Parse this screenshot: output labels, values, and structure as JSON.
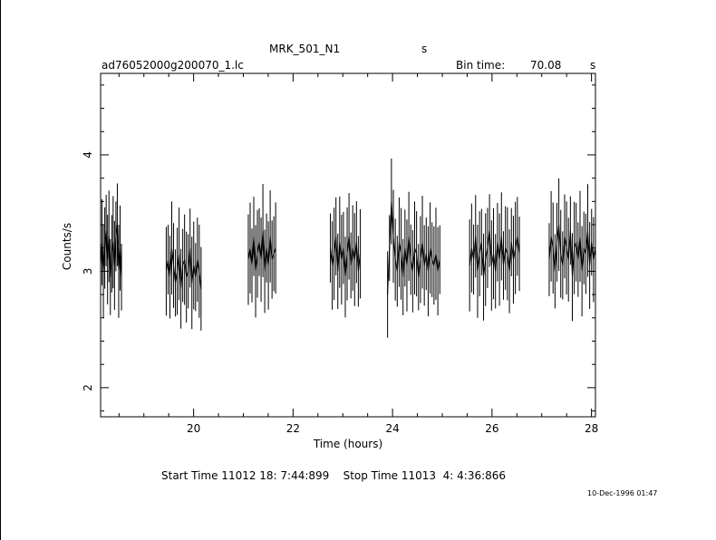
{
  "header": {
    "object": "MRK_501_N1",
    "object_unit": "s",
    "filename": "ad76052000g200070_1.lc",
    "bin_time_label": "Bin time:",
    "bin_time_value": "70.08",
    "bin_time_unit": "s"
  },
  "footer": {
    "start_stop": "Start Time 11012 18: 7:44:899    Stop Time 11013  4: 4:36:866",
    "date_stamp": "10-Dec-1996 01:47"
  },
  "chart_data": {
    "type": "line",
    "style": "error-bar light curve",
    "xlabel": "Time (hours)",
    "ylabel": "Counts/s",
    "xlim": [
      18.13,
      28.08
    ],
    "ylim": [
      1.75,
      4.7
    ],
    "xticks": [
      20,
      22,
      24,
      26,
      28
    ],
    "yticks": [
      2,
      3,
      4
    ],
    "segments": [
      {
        "t_start": 18.13,
        "t_end": 18.55,
        "values": [
          3.05,
          3.25,
          3.0,
          3.2,
          3.35,
          3.1,
          3.3,
          2.95,
          3.15,
          3.25,
          3.05,
          3.3,
          3.4,
          3.0,
          3.2,
          2.95
        ]
      },
      {
        "t_start": 19.45,
        "t_end": 20.15,
        "values": [
          3.0,
          3.1,
          2.95,
          3.2,
          3.05,
          2.9,
          3.0,
          3.15,
          2.85,
          3.05,
          3.1,
          2.95,
          3.0,
          3.2,
          2.9,
          3.05,
          2.95,
          3.1,
          3.0,
          2.85
        ]
      },
      {
        "t_start": 21.1,
        "t_end": 21.65,
        "values": [
          3.1,
          3.2,
          3.05,
          3.3,
          3.0,
          3.15,
          3.25,
          3.1,
          3.35,
          3.0,
          3.2,
          3.05,
          3.3,
          3.1,
          3.15,
          3.2
        ]
      },
      {
        "t_start": 22.75,
        "t_end": 23.35,
        "values": [
          3.2,
          3.05,
          3.15,
          3.3,
          3.0,
          3.25,
          3.1,
          3.2,
          2.95,
          3.15,
          3.3,
          3.05,
          3.2,
          3.1,
          3.25,
          3.0,
          3.15
        ]
      },
      {
        "t_start": 23.9,
        "t_end": 24.95,
        "values": [
          2.8,
          3.2,
          3.6,
          3.3,
          3.1,
          3.0,
          3.25,
          3.15,
          2.95,
          3.2,
          3.05,
          3.3,
          3.1,
          3.0,
          3.2,
          3.15,
          2.95,
          3.1,
          3.25,
          3.05,
          3.15,
          3.0,
          3.2,
          3.1,
          3.05,
          3.15,
          3.0,
          3.1
        ]
      },
      {
        "t_start": 25.55,
        "t_end": 26.55,
        "values": [
          3.05,
          3.2,
          3.1,
          3.3,
          3.0,
          3.15,
          3.25,
          2.95,
          3.1,
          3.2,
          3.35,
          3.05,
          3.15,
          3.0,
          3.25,
          3.1,
          3.3,
          3.05,
          3.2,
          3.15,
          3.0,
          3.25,
          3.1,
          3.2,
          3.3,
          3.15
        ]
      },
      {
        "t_start": 27.15,
        "t_end": 28.08,
        "values": [
          3.1,
          3.3,
          3.2,
          3.0,
          3.25,
          3.4,
          3.15,
          3.05,
          3.3,
          3.2,
          3.1,
          3.35,
          2.95,
          3.2,
          3.25,
          3.1,
          3.3,
          3.0,
          3.2,
          3.15,
          3.35,
          3.05,
          3.25,
          3.1,
          3.2
        ]
      }
    ]
  }
}
